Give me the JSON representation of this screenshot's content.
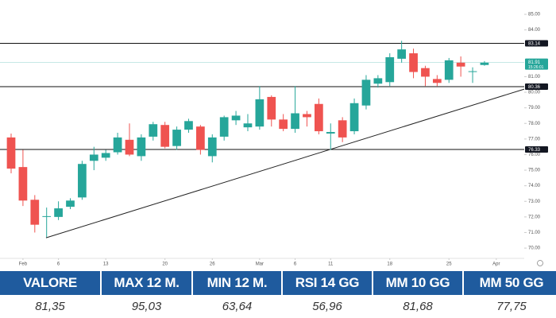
{
  "chart_data": {
    "type": "candlestick",
    "open": [
      77.1,
      75.2,
      73.1,
      72.0,
      72.0,
      72.65,
      73.25,
      75.6,
      75.8,
      76.15,
      76.95,
      75.9,
      77.15,
      77.9,
      76.55,
      77.6,
      77.8,
      75.9,
      77.15,
      78.2,
      77.75,
      77.8,
      79.7,
      78.25,
      77.65,
      78.6,
      79.25,
      77.35,
      78.2,
      77.5,
      79.15,
      80.55,
      80.65,
      82.15,
      82.5,
      81.55,
      80.85,
      80.8,
      81.9,
      81.3,
      81.75
    ],
    "high": [
      77.35,
      76.3,
      73.4,
      72.6,
      73.0,
      73.2,
      75.6,
      76.5,
      76.3,
      77.4,
      78.0,
      77.3,
      78.1,
      78.1,
      77.8,
      78.3,
      77.9,
      77.3,
      78.5,
      78.8,
      78.6,
      80.4,
      79.8,
      78.6,
      80.4,
      78.8,
      79.6,
      78.0,
      78.4,
      79.6,
      81.1,
      81.1,
      82.5,
      83.3,
      82.8,
      81.7,
      81.1,
      82.2,
      82.3,
      81.6,
      82.0
    ],
    "low": [
      74.8,
      72.7,
      71.0,
      70.7,
      71.8,
      72.5,
      73.1,
      75.0,
      75.6,
      76.0,
      75.9,
      75.6,
      76.9,
      76.4,
      76.3,
      77.4,
      76.0,
      75.5,
      76.9,
      77.9,
      77.5,
      77.6,
      77.8,
      77.5,
      77.4,
      77.8,
      77.3,
      76.3,
      76.8,
      77.3,
      78.9,
      80.3,
      80.4,
      81.9,
      80.9,
      80.4,
      80.4,
      80.6,
      81.0,
      80.6,
      81.7
    ],
    "close": [
      75.1,
      73.05,
      71.5,
      72.05,
      72.55,
      73.05,
      75.4,
      76.0,
      76.1,
      77.1,
      76.0,
      77.1,
      77.95,
      76.5,
      77.6,
      78.15,
      76.3,
      77.1,
      78.4,
      78.5,
      78.0,
      79.55,
      78.25,
      77.65,
      78.65,
      78.4,
      77.5,
      77.45,
      77.1,
      79.3,
      80.8,
      80.9,
      82.25,
      82.75,
      81.3,
      81.0,
      80.6,
      82.05,
      81.65,
      81.35,
      81.9
    ],
    "up_color": "#26a69a",
    "down_color": "#ef5350",
    "xlim": [
      -0.94,
      43.36
    ],
    "xticks": [
      {
        "value": 1,
        "label": "Feb"
      },
      {
        "value": 4,
        "label": "6"
      },
      {
        "value": 8,
        "label": "13"
      },
      {
        "value": 13,
        "label": "20"
      },
      {
        "value": 17,
        "label": "26"
      },
      {
        "value": 21,
        "label": "Mar"
      },
      {
        "value": 24,
        "label": "6"
      },
      {
        "value": 27,
        "label": "11"
      },
      {
        "value": 32,
        "label": "18"
      },
      {
        "value": 37,
        "label": "25"
      },
      {
        "value": 41,
        "label": "Apr"
      }
    ],
    "ylim": [
      69.34,
      85.92
    ],
    "yticks": [
      {
        "value": 70,
        "label": "70.00"
      },
      {
        "value": 71,
        "label": "71.00"
      },
      {
        "value": 72,
        "label": "72.00"
      },
      {
        "value": 73,
        "label": "73.00"
      },
      {
        "value": 74,
        "label": "74.00"
      },
      {
        "value": 75,
        "label": "75.00"
      },
      {
        "value": 76,
        "label": "76.00"
      },
      {
        "value": 77,
        "label": "77.00"
      },
      {
        "value": 78,
        "label": "78.00"
      },
      {
        "value": 79,
        "label": "79.00"
      },
      {
        "value": 80,
        "label": "80.00"
      },
      {
        "value": 81,
        "label": "81.00"
      },
      {
        "value": 84,
        "label": "84.00"
      },
      {
        "value": 85,
        "label": "85.00"
      }
    ],
    "levels": [
      83.14,
      80.36,
      76.33
    ],
    "last_price": 81.91,
    "last_time": "15:26:01",
    "trendline": {
      "x": [
        2.95,
        43.36
      ],
      "y": [
        70.66,
        80.2
      ]
    },
    "grid": false
  },
  "table": {
    "header": [
      "VALORE",
      "MAX 12 M.",
      "MIN 12 M.",
      "RSI 14 GG",
      "MM 10 GG",
      "MM 50 GG"
    ],
    "rows": [
      [
        "81,35",
        "95,03",
        "63,64",
        "56,96",
        "81,68",
        "77,75"
      ]
    ]
  }
}
